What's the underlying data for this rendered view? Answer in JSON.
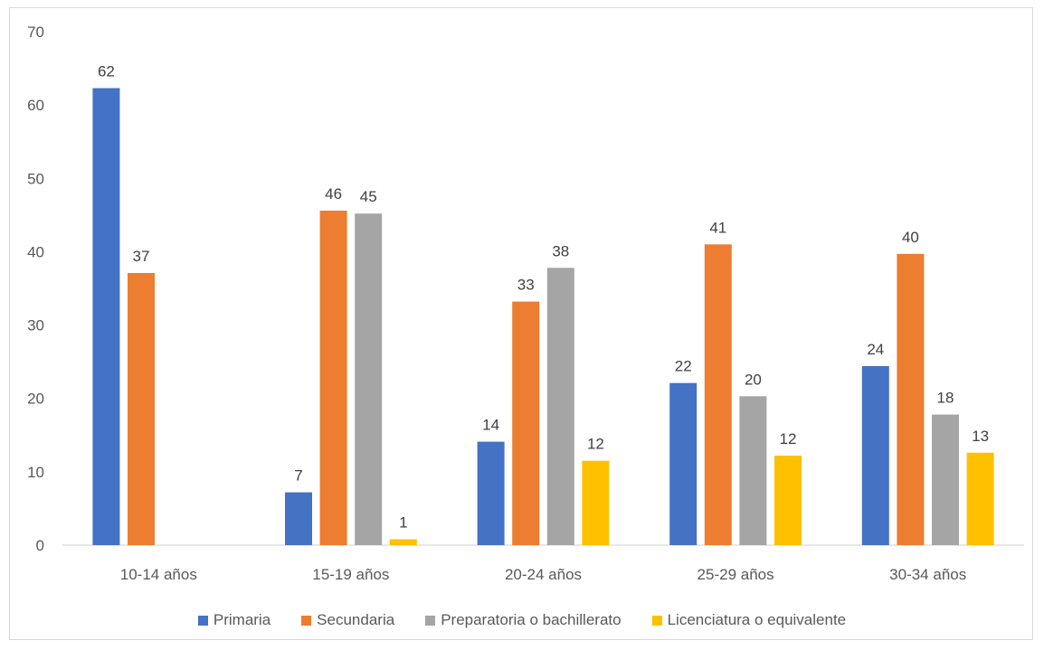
{
  "chart_data": {
    "type": "bar",
    "categories": [
      "10-14 años",
      "15-19 años",
      "20-24 años",
      "25-29 años",
      "30-34 años"
    ],
    "series": [
      {
        "name": "Primaria",
        "color": "#4472C4",
        "values": [
          62.3,
          7.2,
          14.1,
          22.1,
          24.4
        ],
        "labels": [
          "62",
          "7",
          "14",
          "22",
          "24"
        ]
      },
      {
        "name": "Secundaria",
        "color": "#ED7D31",
        "values": [
          37.1,
          45.6,
          33.2,
          41.0,
          39.7
        ],
        "labels": [
          "37",
          "46",
          "33",
          "41",
          "40"
        ]
      },
      {
        "name": "Preparatoria o bachillerato",
        "color": "#A5A5A5",
        "values": [
          null,
          45.2,
          37.8,
          20.3,
          17.8
        ],
        "labels": [
          null,
          "45",
          "38",
          "20",
          "18"
        ]
      },
      {
        "name": "Licenciatura o equivalente",
        "color": "#FFC000",
        "values": [
          null,
          0.8,
          11.5,
          12.2,
          12.6
        ],
        "labels": [
          null,
          "1",
          "12",
          "12",
          "13"
        ]
      }
    ],
    "ylim": [
      0,
      70
    ],
    "yticks": [
      0,
      10,
      20,
      30,
      40,
      50,
      60,
      70
    ],
    "grid": false,
    "legend_position": "bottom"
  }
}
